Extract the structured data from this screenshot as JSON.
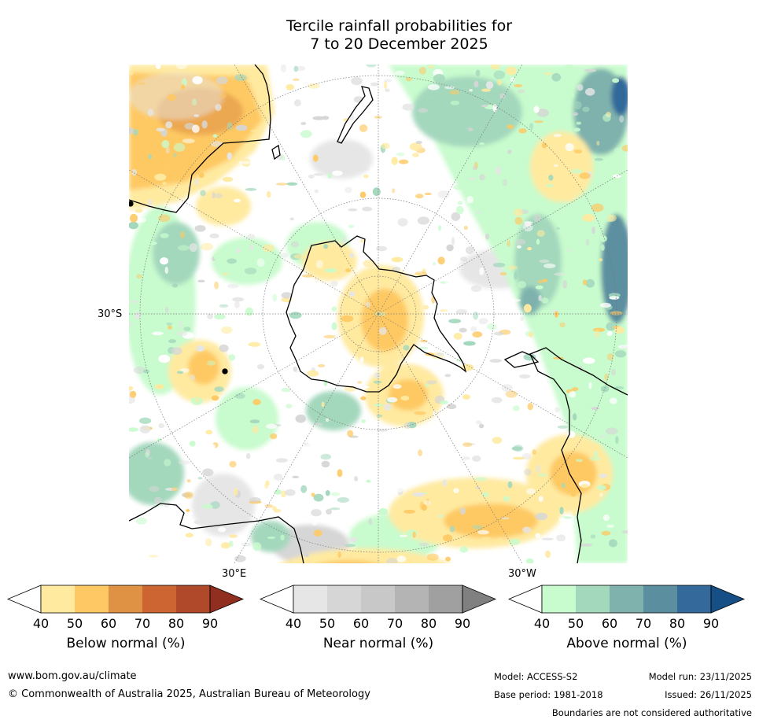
{
  "title": {
    "line1": "Tercile rainfall probabilities for",
    "line2": "7 to 20 December 2025"
  },
  "map": {
    "labels": {
      "lat_left": "30°S",
      "lon_bottom_left": "30°E",
      "lon_bottom_right": "30°W"
    },
    "colors": {
      "land_outline": "#000000",
      "grid": "#777777"
    }
  },
  "legends": [
    {
      "title": "Below normal (%)",
      "ticks": [
        "40",
        "50",
        "60",
        "70",
        "80",
        "90"
      ],
      "colors": [
        "#ffffff",
        "#ffeaa0",
        "#fec964",
        "#df9244",
        "#cd6533",
        "#b0482a",
        "#902f1f"
      ]
    },
    {
      "title": "Near normal (%)",
      "ticks": [
        "40",
        "50",
        "60",
        "70",
        "80",
        "90"
      ],
      "colors": [
        "#ffffff",
        "#e6e6e6",
        "#d6d6d6",
        "#c8c8c8",
        "#b4b4b4",
        "#a0a0a0",
        "#808080"
      ]
    },
    {
      "title": "Above normal (%)",
      "ticks": [
        "40",
        "50",
        "60",
        "70",
        "80",
        "90"
      ],
      "colors": [
        "#ffffff",
        "#c8fbcd",
        "#a4d8bd",
        "#7fb2ad",
        "#5b8fa0",
        "#33699b",
        "#164f86"
      ]
    }
  ],
  "footer": {
    "url": "www.bom.gov.au/climate",
    "copyright": "© Commonwealth of Australia 2025, Australian Bureau of Meteorology",
    "model": "Model: ACCESS-S2",
    "base_period": "Base period: 1981-2018",
    "model_run": "Model run: 23/11/2025",
    "issued": "Issued: 26/11/2025",
    "disclaimer": "Boundaries are not considered authoritative"
  }
}
